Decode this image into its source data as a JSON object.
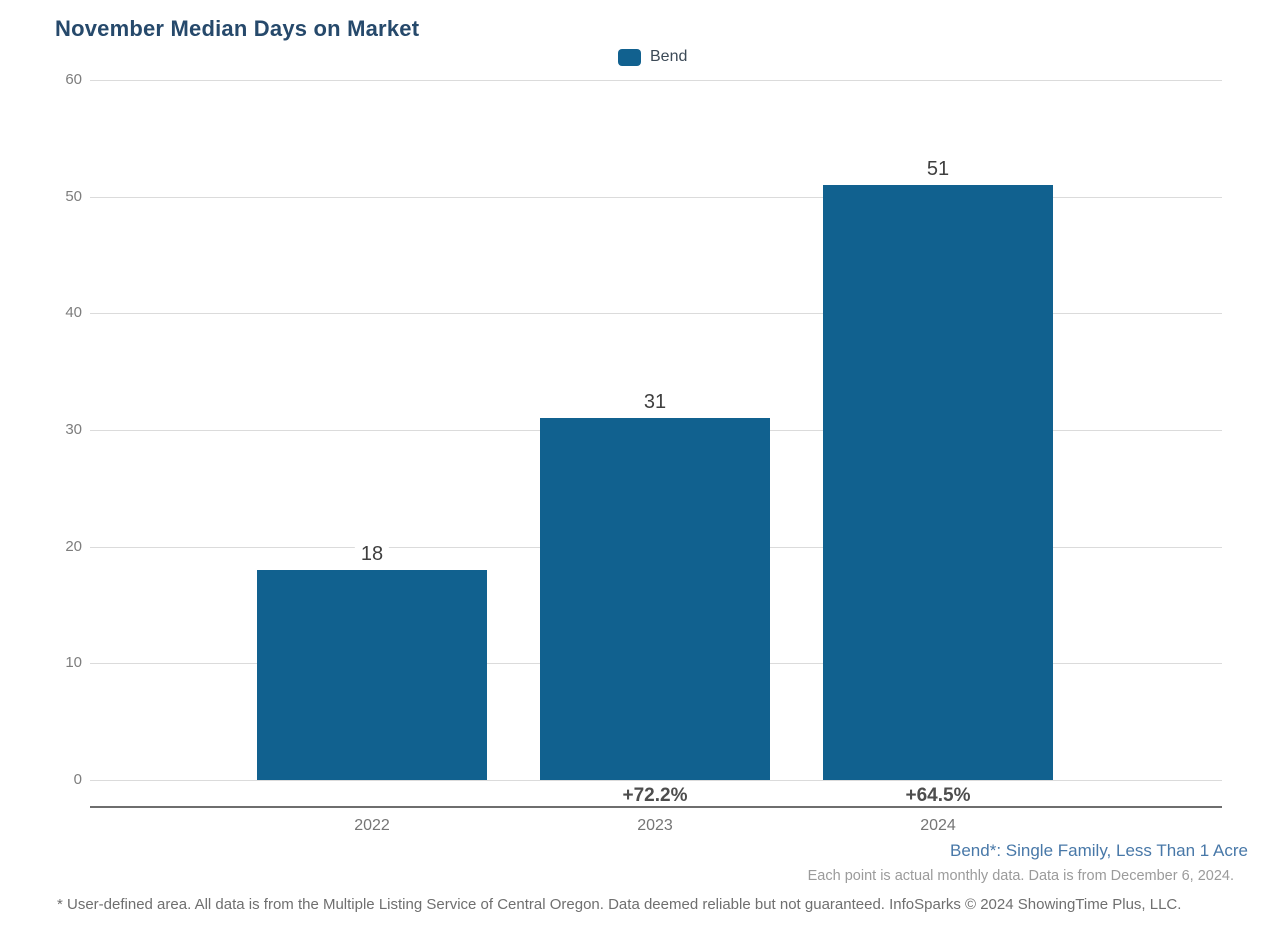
{
  "title": "November Median Days on Market",
  "legend": {
    "label": "Bend"
  },
  "colors": {
    "bar_blue": "#11618F",
    "title_navy": "#26496B",
    "annotation_blue": "#4878A8",
    "gridline_gray": "#DBDBDB",
    "axis_gray": "#6E6E6E"
  },
  "chart_data": {
    "type": "bar",
    "title": "November Median Days on Market",
    "categories": [
      "2022",
      "2023",
      "2024"
    ],
    "series": [
      {
        "name": "Bend",
        "values": [
          18,
          31,
          51
        ]
      }
    ],
    "value_labels": [
      "18",
      "31",
      "51"
    ],
    "pct_change_labels": [
      "",
      "+72.2%",
      "+64.5%"
    ],
    "xlabel": "",
    "ylabel": "",
    "ylim": [
      0,
      60
    ],
    "yticks": [
      0,
      10,
      20,
      30,
      40,
      50,
      60
    ],
    "grid": true,
    "legend_position": "top-center"
  },
  "annotations": {
    "series_definition": "Bend*: Single Family, Less Than 1 Acre",
    "data_note": "Each point is actual monthly data. Data is from December 6, 2024.",
    "footer": "* User-defined area. All data is from the Multiple Listing Service of Central Oregon. Data deemed reliable but not guaranteed. InfoSparks © 2024 ShowingTime Plus, LLC."
  }
}
